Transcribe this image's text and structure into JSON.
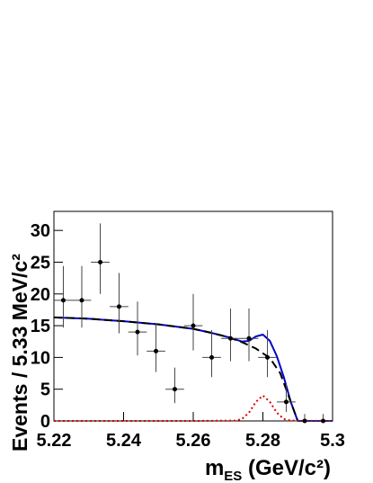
{
  "chart_data": {
    "type": "scatter",
    "x_label": [
      "m",
      "ES",
      " (GeV/c²)"
    ],
    "y_label": "Events / 5.33 MeV/c²",
    "xlim": [
      5.22,
      5.3
    ],
    "ylim": [
      0,
      33
    ],
    "xticks": [
      5.22,
      5.24,
      5.26,
      5.28,
      5.3
    ],
    "yticks": [
      0,
      5,
      10,
      15,
      20,
      25,
      30
    ],
    "points": {
      "color": "#000000",
      "xerr": 0.00267,
      "x": [
        5.2227,
        5.228,
        5.2333,
        5.2387,
        5.244,
        5.2493,
        5.2547,
        5.26,
        5.2653,
        5.2707,
        5.276,
        5.2813,
        5.2867,
        5.292,
        5.2973
      ],
      "values": [
        19,
        19,
        25,
        18,
        14,
        11,
        5,
        15,
        10,
        13,
        13,
        10,
        3,
        0,
        0
      ],
      "errors_high": [
        5.4,
        5.4,
        6.1,
        5.3,
        4.8,
        4.4,
        3.4,
        5,
        4.3,
        4.7,
        4.7,
        4.3,
        2.9,
        1.1,
        1.1
      ],
      "errors_low": [
        4.3,
        4.3,
        5,
        4.2,
        3.7,
        3.3,
        2.2,
        3.9,
        3.1,
        3.6,
        3.6,
        3.1,
        1.6,
        0,
        0
      ]
    },
    "curves": [
      {
        "color": "#0000cc",
        "style": "solid",
        "x": [
          5.22,
          5.23,
          5.24,
          5.25,
          5.26,
          5.265,
          5.27,
          5.274,
          5.276,
          5.278,
          5.28,
          5.282,
          5.284,
          5.286,
          5.288,
          5.29,
          5.3
        ],
        "values": [
          16.3,
          16.1,
          15.7,
          15.2,
          14.5,
          13.9,
          13.2,
          12.5,
          12.6,
          13.3,
          13.6,
          12.6,
          10.2,
          6.9,
          3,
          0,
          0
        ]
      },
      {
        "color": "#000000",
        "style": "dashed",
        "x": [
          5.22,
          5.23,
          5.24,
          5.25,
          5.26,
          5.265,
          5.27,
          5.274,
          5.278,
          5.282,
          5.285,
          5.288,
          5.29
        ],
        "values": [
          16.3,
          16.1,
          15.7,
          15.2,
          14.5,
          13.9,
          13.2,
          12.4,
          11.4,
          9.9,
          7.5,
          3,
          0
        ]
      },
      {
        "color": "#dd0000",
        "style": "dotted",
        "x": [
          5.22,
          5.26,
          5.272,
          5.274,
          5.276,
          5.278,
          5.28,
          5.282,
          5.284,
          5.286,
          5.288,
          5.3
        ],
        "values": [
          0,
          0,
          0.05,
          0.3,
          1.3,
          3,
          4,
          3,
          1.3,
          0.3,
          0.05,
          0
        ]
      }
    ]
  }
}
